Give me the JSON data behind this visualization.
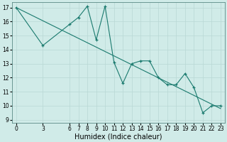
{
  "xlabel": "Humidex (Indice chaleur)",
  "x": [
    0,
    3,
    6,
    7,
    8,
    9,
    10,
    11,
    12,
    13,
    14,
    15,
    16,
    17,
    18,
    19,
    20,
    21,
    22,
    23
  ],
  "y": [
    17,
    14.3,
    15.8,
    16.3,
    17.1,
    14.7,
    17.1,
    13.1,
    11.6,
    13.0,
    13.2,
    13.2,
    12.0,
    11.5,
    11.5,
    12.3,
    11.3,
    9.5,
    10.0,
    10.0
  ],
  "trend_x": [
    0,
    23
  ],
  "trend_y": [
    17.0,
    9.8
  ],
  "line_color": "#1a7a6e",
  "marker": "+",
  "bg_color": "#d0ebe8",
  "grid_color": "#b8d8d4",
  "ylim_min": 8.8,
  "ylim_max": 17.4,
  "xlim_min": -0.5,
  "xlim_max": 23.5,
  "yticks": [
    9,
    10,
    11,
    12,
    13,
    14,
    15,
    16,
    17
  ],
  "xticks": [
    0,
    3,
    6,
    7,
    8,
    9,
    10,
    11,
    12,
    13,
    14,
    15,
    16,
    17,
    18,
    19,
    20,
    21,
    22,
    23
  ],
  "tick_fontsize": 5.5,
  "label_fontsize": 7
}
